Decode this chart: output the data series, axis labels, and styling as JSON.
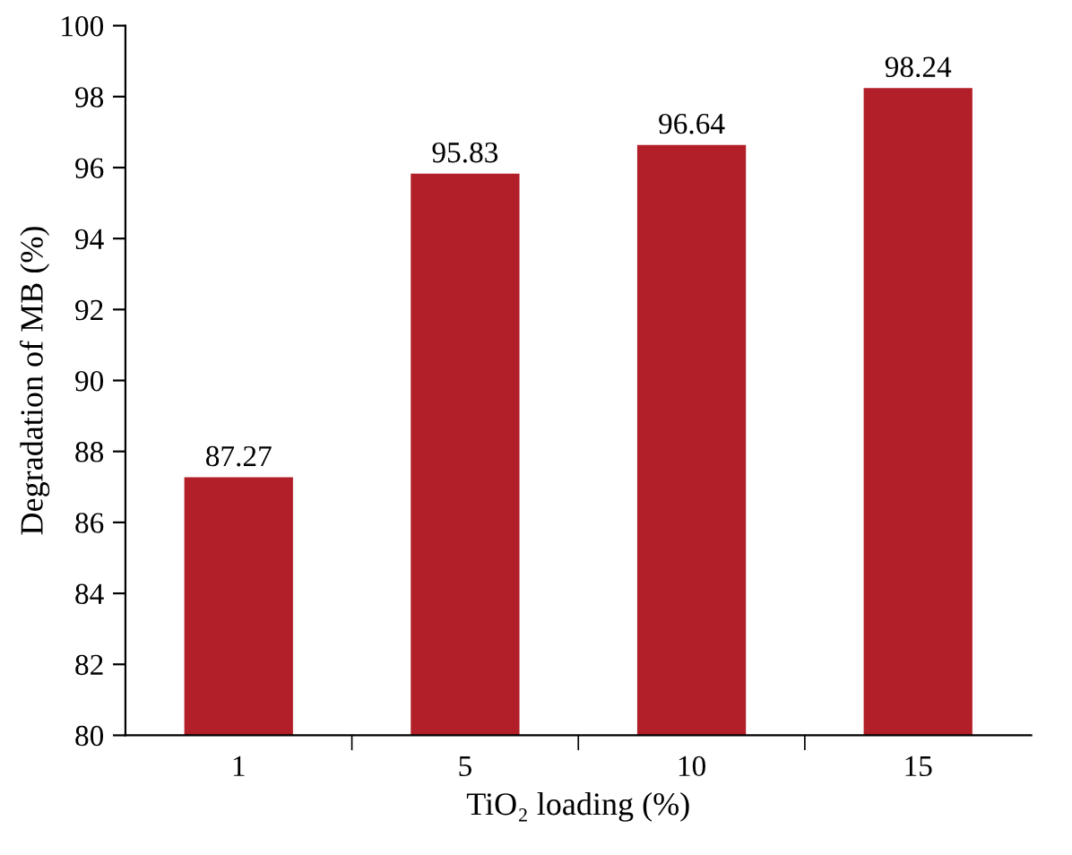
{
  "chart_data": {
    "type": "bar",
    "xlabel": "TiO₂ loading (%)",
    "ylabel": "Degradation of MB (%)",
    "categories": [
      "1",
      "5",
      "10",
      "15"
    ],
    "values": [
      87.27,
      95.83,
      96.64,
      98.24
    ],
    "color": "#b21f28",
    "ylim": [
      80,
      100
    ],
    "yticks": [
      80,
      82,
      84,
      86,
      88,
      90,
      92,
      94,
      96,
      98,
      100
    ],
    "data_labels": true,
    "grid": false,
    "legend": false
  }
}
